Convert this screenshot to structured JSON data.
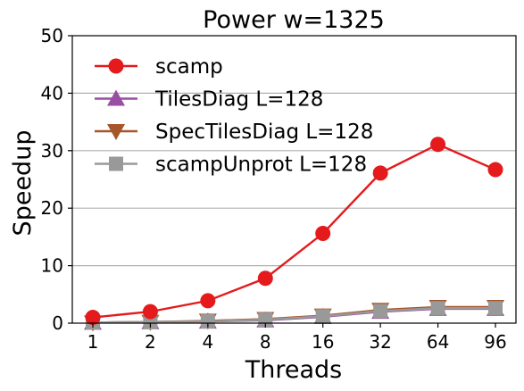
{
  "chart_data": {
    "type": "line",
    "title": "Power w=1325",
    "xlabel": "Threads",
    "ylabel": "Speedup",
    "categories": [
      "1",
      "2",
      "4",
      "8",
      "16",
      "32",
      "64",
      "96"
    ],
    "ylim": [
      0,
      50
    ],
    "yticks": [
      "0",
      "10",
      "20",
      "30",
      "40",
      "50"
    ],
    "grid": "horizontal",
    "legend_position": "top-left",
    "series": [
      {
        "name": "scamp",
        "marker": "circle",
        "color": "#e41a1c",
        "values": [
          1.0,
          2.0,
          3.9,
          7.8,
          15.6,
          26.1,
          31.1,
          26.7
        ]
      },
      {
        "name": "TilesDiag L=128",
        "marker": "triangle-up",
        "color": "#984ea3",
        "values": [
          0.1,
          0.2,
          0.3,
          0.5,
          1.1,
          2.0,
          2.5,
          2.5
        ]
      },
      {
        "name": "SpecTilesDiag L=128",
        "marker": "triangle-down",
        "color": "#a65628",
        "values": [
          0.1,
          0.2,
          0.4,
          0.7,
          1.3,
          2.3,
          2.8,
          2.8
        ]
      },
      {
        "name": "scampUnprot L=128",
        "marker": "square",
        "color": "#999999",
        "values": [
          0.1,
          0.2,
          0.3,
          0.6,
          1.2,
          2.1,
          2.6,
          2.6
        ]
      }
    ]
  }
}
